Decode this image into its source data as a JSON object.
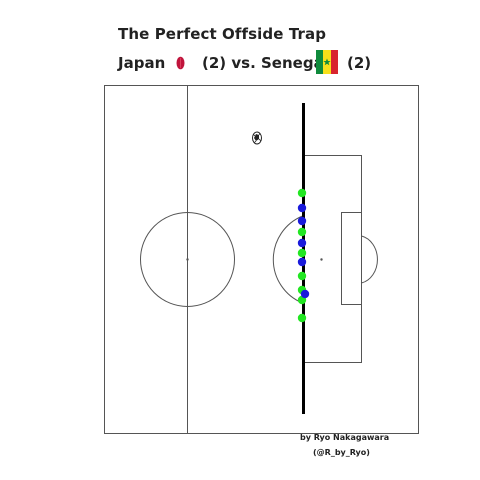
{
  "title": "The Perfect Offside Trap",
  "subtitle": {
    "home_team": "Japan",
    "home_score_vs": "(2) vs. Senegal",
    "away_score": "(2)"
  },
  "credits": {
    "line1": "by Ryo Nakagawara",
    "line2": "(@R_by_Ryo)"
  },
  "colors": {
    "japan_crest": "#c0143c",
    "senegal_flag": [
      "#0f8a3c",
      "#f7e01a",
      "#d8242f"
    ],
    "senegal_star": "#0f8a3c",
    "japan_players": "#1a1adb",
    "senegal_players": "#22e622",
    "pitch_lines": "#555555",
    "offside_line": "#000000"
  },
  "icons": {
    "ball": "football-icon",
    "home_crest": "japan-crest-icon",
    "away_flag": "senegal-flag-icon"
  }
}
